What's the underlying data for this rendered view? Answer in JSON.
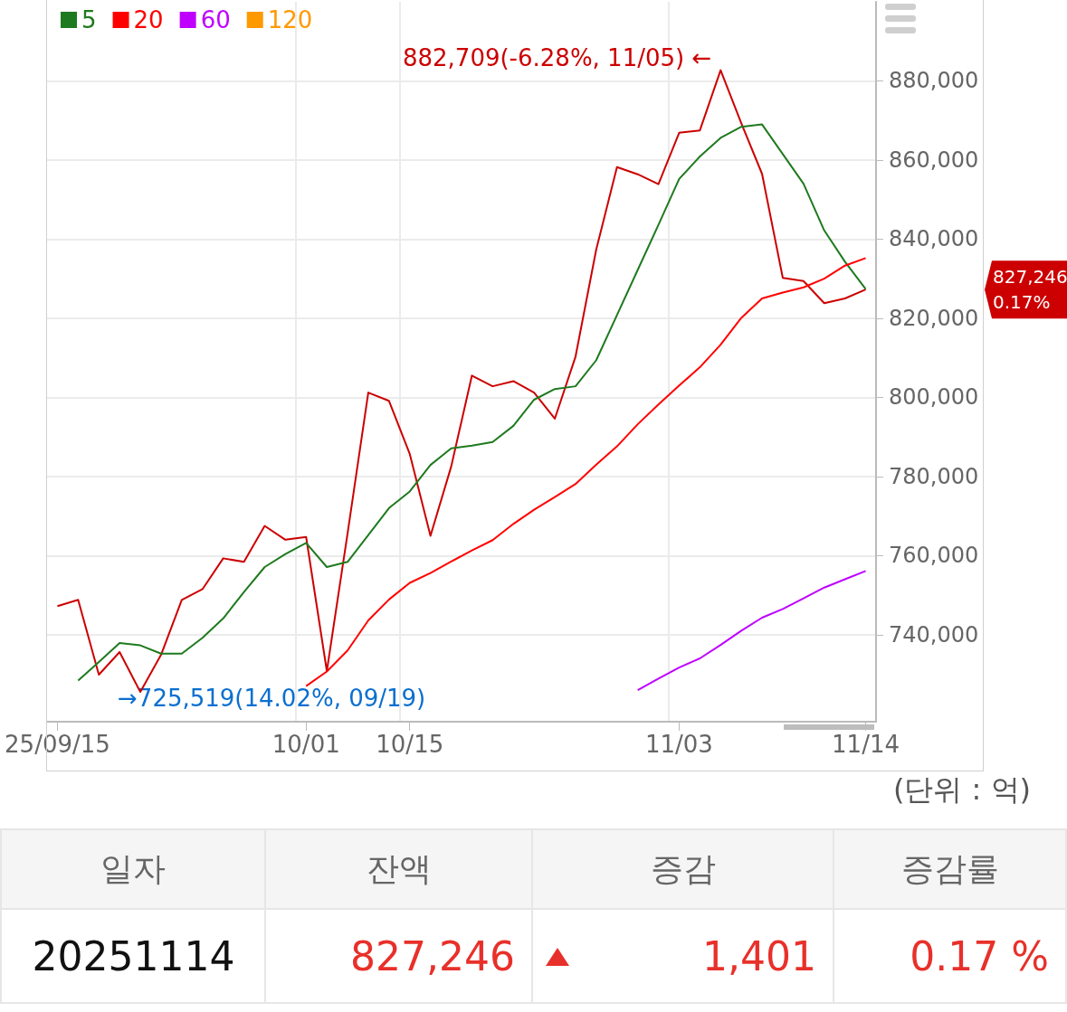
{
  "chart_data": {
    "type": "line",
    "categories": [
      "25/09/15",
      null,
      null,
      null,
      null,
      null,
      null,
      null,
      null,
      null,
      null,
      null,
      "10/01",
      null,
      null,
      null,
      null,
      "10/15",
      null,
      null,
      null,
      null,
      null,
      null,
      null,
      null,
      null,
      null,
      null,
      null,
      "11/03",
      null,
      null,
      null,
      null,
      null,
      null,
      null,
      null,
      "11/14"
    ],
    "series": [
      {
        "color": "#cc0000",
        "values": [
          747200,
          748800,
          729900,
          735600,
          725519,
          734900,
          748800,
          751500,
          759300,
          758400,
          767500,
          764000,
          764700,
          730800,
          765600,
          801200,
          799100,
          785700,
          765000,
          782500,
          805500,
          802800,
          804100,
          801200,
          794600,
          810300,
          837400,
          858200,
          856400,
          853900,
          866900,
          867500,
          882709,
          869300,
          856500,
          830200,
          829400,
          823800,
          825000,
          827246
        ]
      },
      {
        "name": "5",
        "color": "#1e7a1e",
        "values": [
          null,
          728400,
          733100,
          737900,
          737300,
          735200,
          735200,
          739200,
          744100,
          750800,
          757100,
          760400,
          763200,
          757100,
          758400,
          765200,
          772000,
          776200,
          782900,
          787100,
          787800,
          788700,
          792800,
          799400,
          802100,
          802800,
          809400,
          820800,
          832200,
          843600,
          855200,
          860900,
          865600,
          868400,
          869000,
          861500,
          854000,
          842200,
          834300,
          827400
        ]
      },
      {
        "name": "20",
        "color": "#ff0000",
        "values": [
          null,
          null,
          null,
          null,
          null,
          null,
          null,
          null,
          null,
          null,
          null,
          null,
          727000,
          730700,
          736000,
          743600,
          748900,
          753100,
          755600,
          758500,
          761300,
          763900,
          768000,
          771600,
          774800,
          778100,
          783000,
          787600,
          793200,
          798200,
          803000,
          807600,
          813300,
          820100,
          825000,
          826500,
          827800,
          830000,
          833300,
          835200
        ]
      },
      {
        "name": "60",
        "color": "#bf00ff",
        "values": [
          null,
          null,
          null,
          null,
          null,
          null,
          null,
          null,
          null,
          null,
          null,
          null,
          null,
          null,
          null,
          null,
          null,
          null,
          null,
          null,
          null,
          null,
          null,
          null,
          null,
          null,
          null,
          null,
          726000,
          728900,
          731700,
          734000,
          737400,
          741000,
          744300,
          746500,
          749200,
          751900,
          754000,
          756100
        ]
      },
      {
        "name": "120",
        "color": "#ff9900",
        "values": [
          null,
          null,
          null,
          null,
          null,
          null,
          null,
          null,
          null,
          null,
          null,
          null,
          null,
          null,
          null,
          null,
          null,
          null,
          null,
          null,
          null,
          null,
          null,
          null,
          null,
          null,
          null,
          null,
          null,
          null,
          null,
          null,
          null,
          null,
          null,
          null,
          null,
          null,
          null,
          null
        ]
      }
    ],
    "ylim": [
      718000,
      900000
    ],
    "yticks": [
      {
        "value": 740000,
        "label": "740,000"
      },
      {
        "value": 760000,
        "label": "760,000"
      },
      {
        "value": 780000,
        "label": "780,000"
      },
      {
        "value": 800000,
        "label": "800,000"
      },
      {
        "value": 820000,
        "label": "820,000"
      },
      {
        "value": 840000,
        "label": "840,000"
      },
      {
        "value": 860000,
        "label": "860,000"
      },
      {
        "value": 880000,
        "label": "880,000"
      }
    ],
    "grid": true,
    "legend": "top left",
    "annotations": [
      "882,709(-6.28%, 11/05) ←",
      "→725,519(14.02%, 09/19)",
      "827,246\n0.17%",
      "(단위 : 억)",
      "일자",
      "잔액",
      "증감",
      "증감률",
      "20251114",
      "827,246",
      "1,401",
      "0.17 %"
    ]
  }
}
